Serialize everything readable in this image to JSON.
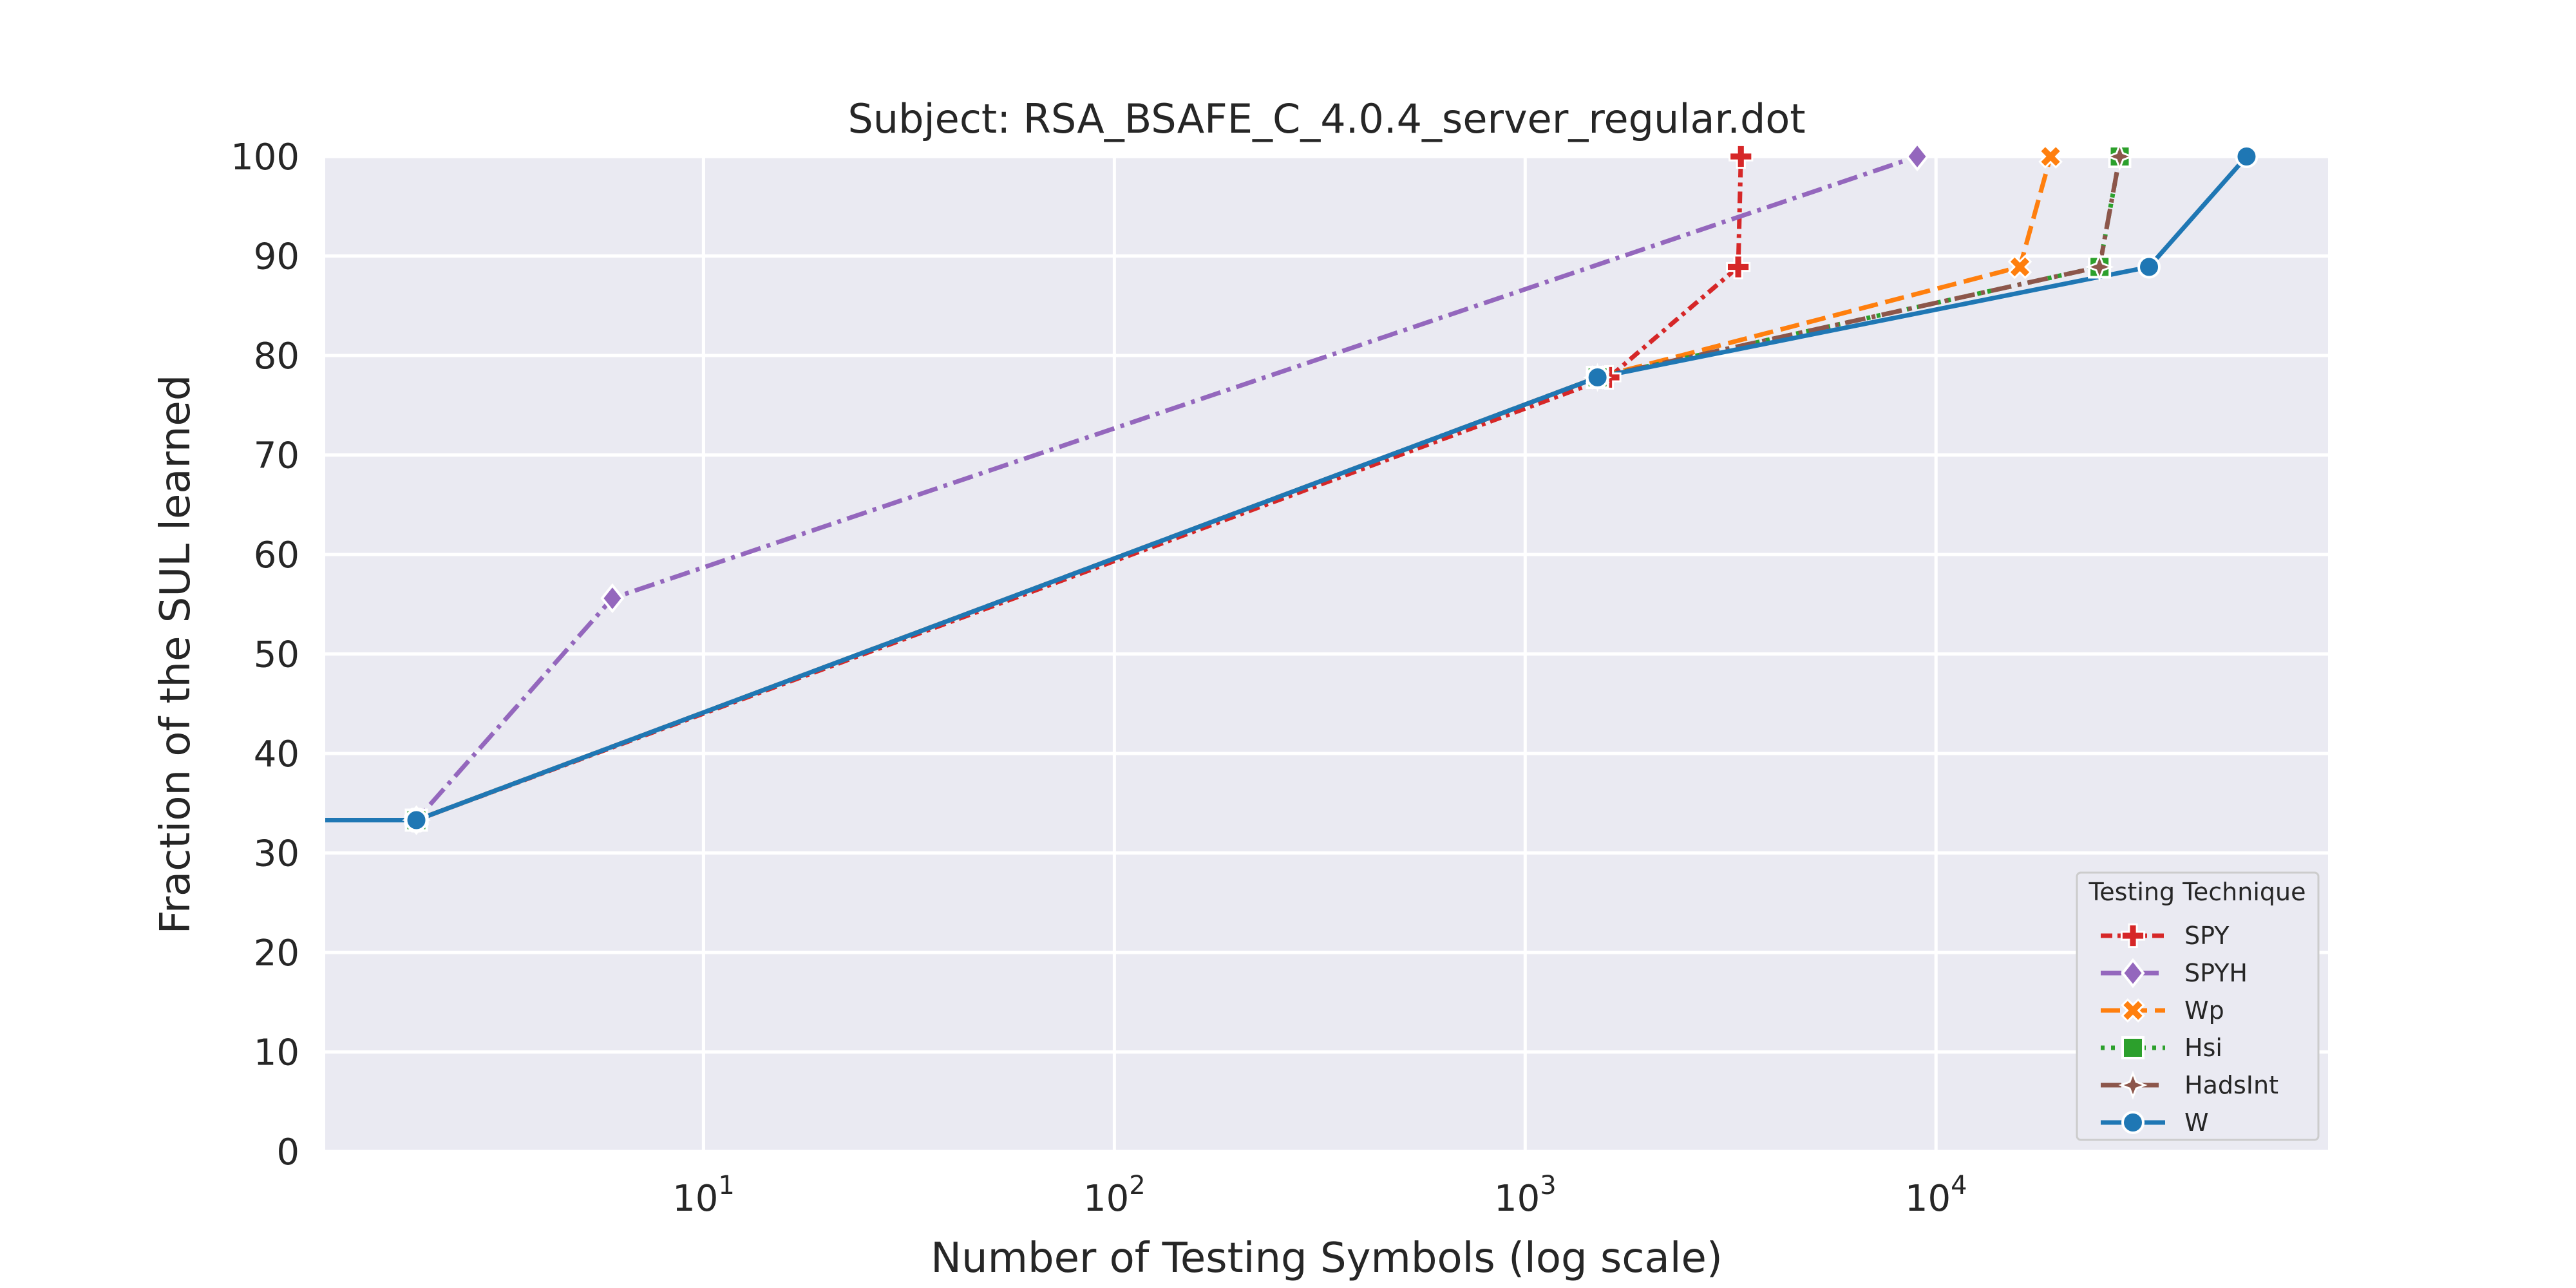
{
  "chart_data": {
    "type": "line",
    "title": "Subject: RSA_BSAFE_C_4.0.4_server_regular.dot",
    "xlabel": "Number of Testing Symbols (log scale)",
    "ylabel": "Fraction of the SUL learned",
    "x_scale": "log",
    "xlim": [
      1.2,
      90000
    ],
    "ylim": [
      0,
      100
    ],
    "yticks": [
      0,
      10,
      20,
      30,
      40,
      50,
      60,
      70,
      80,
      90,
      100
    ],
    "xticks": [
      {
        "value": 10,
        "base": "10",
        "exp": "1"
      },
      {
        "value": 100,
        "base": "10",
        "exp": "2"
      },
      {
        "value": 1000,
        "base": "10",
        "exp": "3"
      },
      {
        "value": 10000,
        "base": "10",
        "exp": "4"
      }
    ],
    "grid": true,
    "background": "#eaeaf2",
    "legend": {
      "title": "Testing Technique",
      "placement": "lower-right"
    },
    "series": [
      {
        "name": "SPY",
        "color": "#d62728",
        "dash": "dashdot-dense",
        "marker": "plus",
        "points": [
          [
            1.2,
            33.3
          ],
          [
            2,
            33.3
          ],
          [
            1600,
            77.8
          ],
          [
            3300,
            88.9
          ],
          [
            3350,
            100
          ]
        ]
      },
      {
        "name": "SPYH",
        "color": "#9467bd",
        "dash": "dashdot",
        "marker": "diamond",
        "points": [
          [
            1.2,
            33.3
          ],
          [
            2,
            33.3
          ],
          [
            6,
            55.6
          ],
          [
            9000,
            100
          ]
        ]
      },
      {
        "name": "Wp",
        "color": "#ff7f0e",
        "dash": "dashed",
        "marker": "x",
        "points": [
          [
            1.2,
            33.3
          ],
          [
            2,
            33.3
          ],
          [
            1500,
            77.8
          ],
          [
            16000,
            88.9
          ],
          [
            19000,
            100
          ]
        ]
      },
      {
        "name": "Hsi",
        "color": "#2ca02c",
        "dash": "dotted",
        "marker": "square",
        "points": [
          [
            1.2,
            33.3
          ],
          [
            2,
            33.3
          ],
          [
            1500,
            77.8
          ],
          [
            25000,
            88.9
          ],
          [
            28000,
            100
          ]
        ]
      },
      {
        "name": "HadsInt",
        "color": "#8c564b",
        "dash": "dashdot",
        "marker": "star",
        "points": [
          [
            1.2,
            33.3
          ],
          [
            2,
            33.3
          ],
          [
            1500,
            77.8
          ],
          [
            25000,
            88.9
          ],
          [
            28000,
            100
          ]
        ]
      },
      {
        "name": "W",
        "color": "#1f77b4",
        "dash": "solid",
        "marker": "circle",
        "points": [
          [
            1.2,
            33.3
          ],
          [
            2,
            33.3
          ],
          [
            1500,
            77.8
          ],
          [
            33000,
            88.9
          ],
          [
            57000,
            100
          ]
        ]
      }
    ]
  }
}
